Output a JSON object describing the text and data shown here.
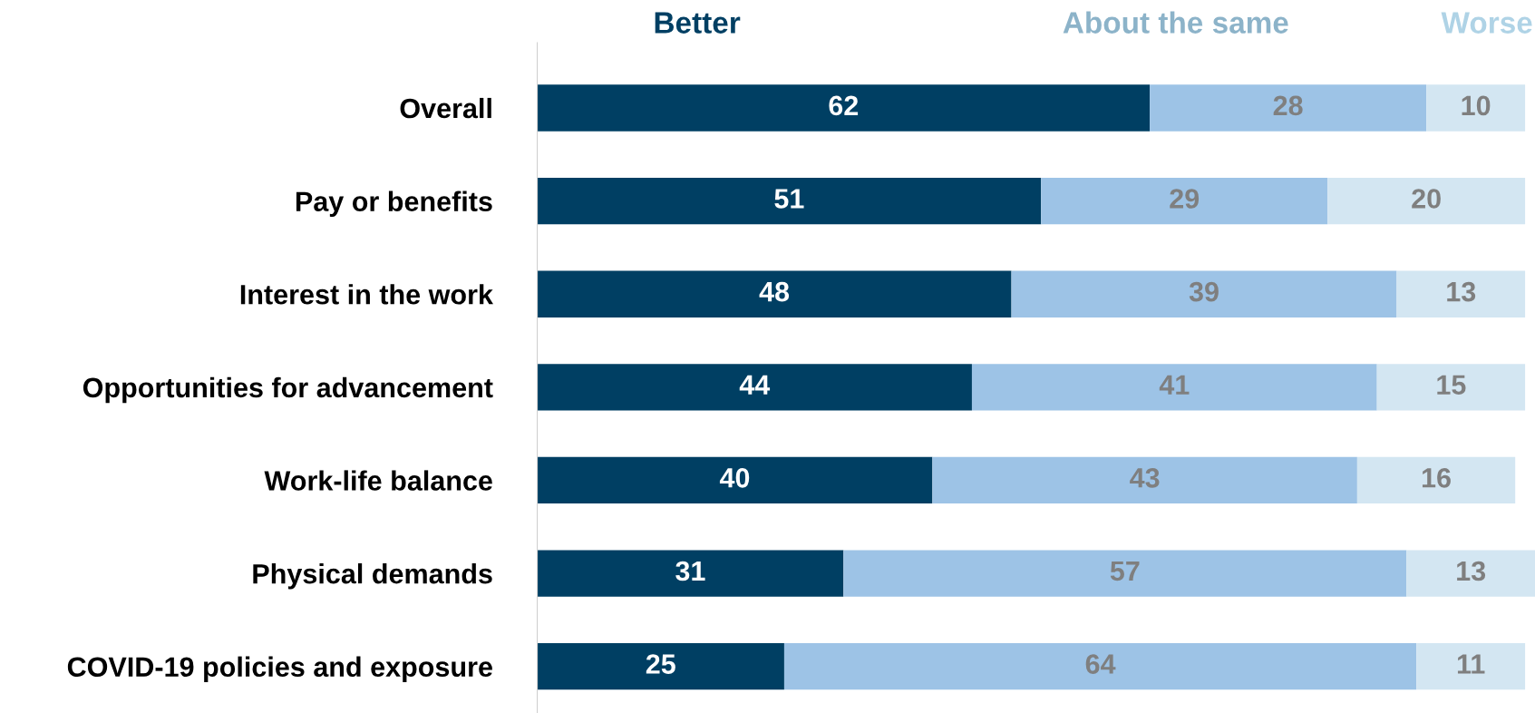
{
  "chart_data": {
    "type": "bar",
    "orientation": "horizontal",
    "stacked": true,
    "data_labels": true,
    "legend": false,
    "grid": false,
    "categories": [
      "Overall",
      "Pay or benefits",
      "Interest in the work",
      "Opportunities for advancement",
      "Work-life balance",
      "Physical demands",
      "COVID-19 policies and exposure"
    ],
    "series": [
      {
        "name": "Better",
        "color": "#003f63",
        "values": [
          62,
          51,
          48,
          44,
          40,
          31,
          25
        ]
      },
      {
        "name": "About the same",
        "color": "#9dc3e6",
        "values": [
          28,
          29,
          39,
          41,
          43,
          57,
          64
        ]
      },
      {
        "name": "Worse",
        "color": "#d3e6f2",
        "values": [
          10,
          20,
          13,
          15,
          16,
          13,
          11
        ]
      }
    ]
  }
}
